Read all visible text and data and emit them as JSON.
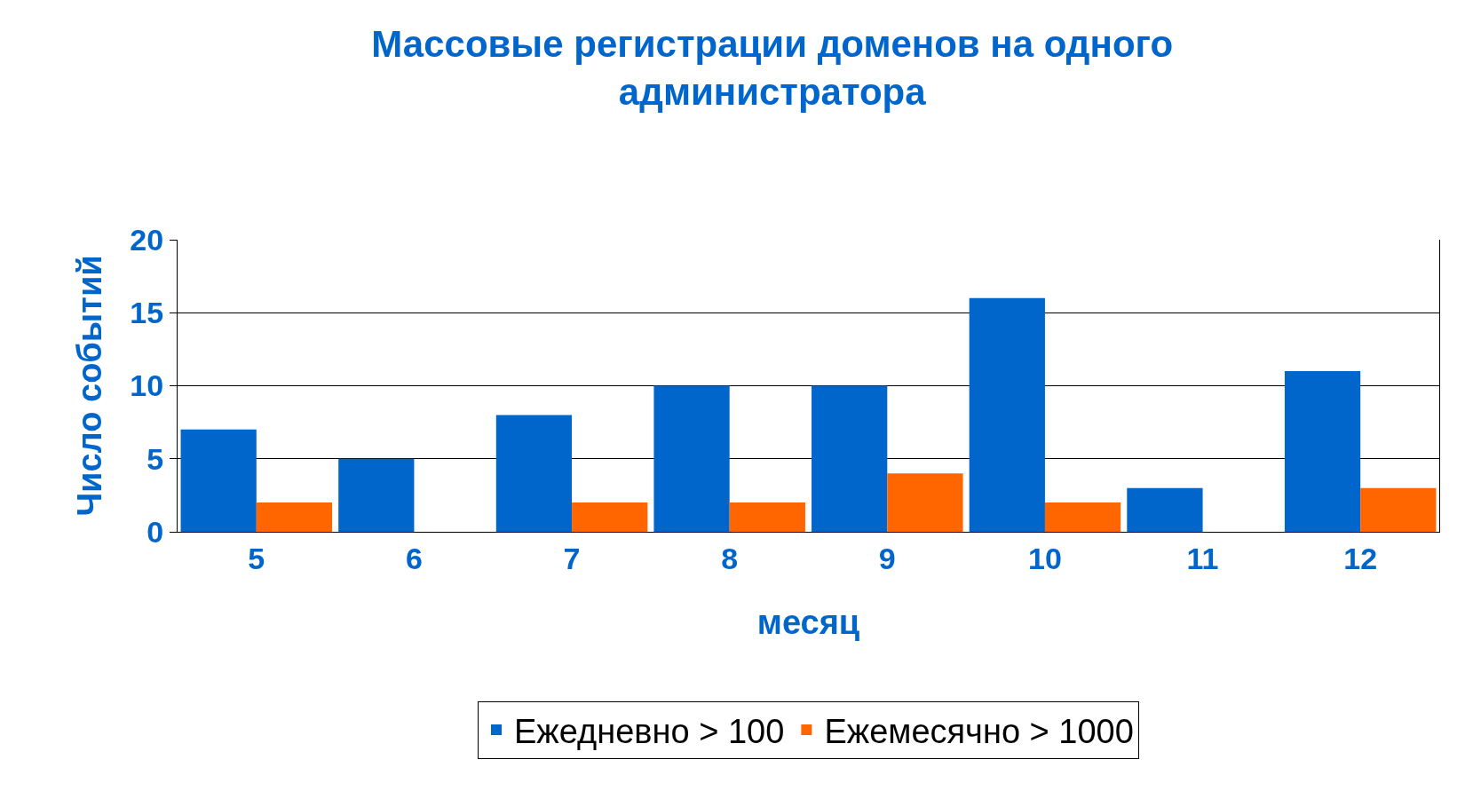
{
  "chart_data": {
    "type": "bar",
    "title": "Массовые регистрации доменов на одного администратора",
    "xlabel": "месяц",
    "ylabel": "Число событий",
    "categories": [
      "5",
      "6",
      "7",
      "8",
      "9",
      "10",
      "11",
      "12"
    ],
    "series": [
      {
        "name": "Ежедневно > 100",
        "color": "#0066cc",
        "values": [
          7,
          5,
          8,
          10,
          10,
          16,
          3,
          11
        ]
      },
      {
        "name": "Ежемесячно > 1000",
        "color": "#ff6600",
        "values": [
          2,
          null,
          2,
          2,
          4,
          2,
          null,
          3
        ]
      }
    ],
    "ylim": [
      0,
      20
    ],
    "yticks": [
      0,
      5,
      10,
      15,
      20
    ],
    "grid": "y",
    "legend": "bottom"
  }
}
